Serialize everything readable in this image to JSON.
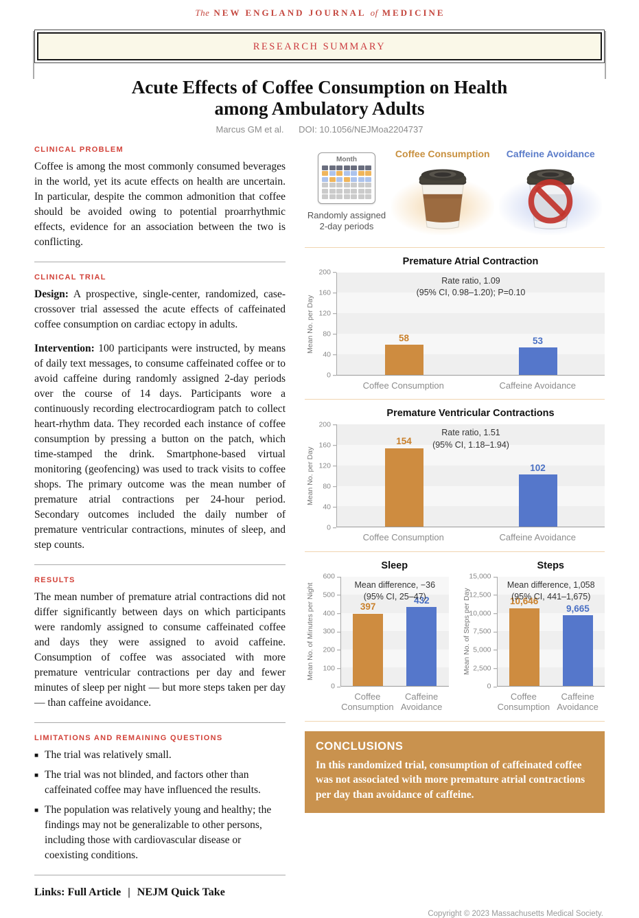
{
  "masthead": {
    "pre": "The",
    "part1": "NEW ENGLAND JOURNAL",
    "mid": "of",
    "part2": "MEDICINE"
  },
  "banner": {
    "label": "RESEARCH SUMMARY"
  },
  "title": {
    "line1": "Acute Effects of Coffee Consumption on Health",
    "line2": "among Ambulatory Adults"
  },
  "byline": {
    "authors": "Marcus GM et al.",
    "doi": "DOI: 10.1056/NEJMoa2204737"
  },
  "sections": {
    "clinical_problem": {
      "heading": "CLINICAL PROBLEM",
      "body": "Coffee is among the most commonly consumed beverages in the world, yet its acute effects on health are uncertain. In particular, despite the common admonition that coffee should be avoided owing to potential proarrhythmic effects, evidence for an association between the two is conflicting."
    },
    "clinical_trial": {
      "heading": "CLINICAL TRIAL",
      "design_label": "Design:",
      "design_body": "A prospective, single-center, randomized, case-crossover trial assessed the acute effects of caffeinated coffee consumption on cardiac ectopy in adults.",
      "intervention_label": "Intervention:",
      "intervention_body": "100 participants were instructed, by means of daily text messages, to consume caffeinated coffee or to avoid caffeine during randomly assigned 2-day periods over the course of 14 days. Participants wore a continuously recording electrocardiogram patch to collect heart-rhythm data. They recorded each instance of coffee consumption by pressing a button on the patch, which time-stamped the drink. Smartphone-based virtual monitoring (geofencing) was used to track visits to coffee shops. The primary outcome was the mean number of premature atrial contractions per 24-hour period. Secondary outcomes included the daily number of premature ventricular contractions, minutes of sleep, and step counts."
    },
    "results": {
      "heading": "RESULTS",
      "body": "The mean number of premature atrial contractions did not differ significantly between days on which participants were randomly assigned to consume caffeinated coffee and days they were assigned to avoid caffeine. Consumption of coffee was associated with more premature ventricular contractions per day and fewer minutes of sleep per night — but more steps taken per day — than caffeine avoidance."
    },
    "limitations": {
      "heading": "LIMITATIONS AND REMAINING QUESTIONS",
      "bullets": [
        "The trial was relatively small.",
        "The trial was not blinded, and factors other than caffeinated coffee may have influenced the results.",
        "The population was relatively young and healthy; the findings may not be generalizable to other persons, including those with cardiovascular disease or coexisting conditions."
      ]
    },
    "links": {
      "label": "Links:",
      "full_article": "Full Article",
      "separator": "|",
      "quick_take": "NEJM Quick Take"
    }
  },
  "illustration": {
    "calendar_month_label": "Month",
    "calendar_caption": "Randomly assigned\n2-day periods",
    "coffee_label": "Coffee Consumption",
    "avoidance_label": "Caffeine Avoidance",
    "calendar_rows": [
      [
        "h",
        "h",
        "h",
        "h",
        "h",
        "h",
        "h"
      ],
      [
        "o",
        "b",
        "o",
        "b",
        "b",
        "o",
        "o"
      ],
      [
        "b",
        "o",
        "b",
        "o",
        "b",
        "b",
        "b"
      ],
      [
        "g",
        "g",
        "g",
        "g",
        "g",
        "g",
        "g"
      ],
      [
        "g",
        "g",
        "g",
        "g",
        "g",
        "g",
        "g"
      ],
      [
        "g",
        "g",
        "g",
        "g",
        "g",
        "g",
        "g"
      ]
    ]
  },
  "chart_data": [
    {
      "type": "bar",
      "title": "Premature Atrial Contraction",
      "annotation": "Rate ratio, 1.09\n(95% CI, 0.98–1.20); P=0.10",
      "ylabel": "Mean No. per Day",
      "ylim": [
        0,
        200
      ],
      "yticks": [
        0,
        40,
        80,
        120,
        160,
        200
      ],
      "ytick_labels": [
        "0",
        "40",
        "80",
        "120",
        "160",
        "200"
      ],
      "categories": [
        "Coffee Consumption",
        "Caffeine Avoidance"
      ],
      "values": [
        58,
        53
      ],
      "value_labels": [
        "58",
        "53"
      ],
      "series_keys": [
        "coffee",
        "avoidance"
      ],
      "grid": "banded",
      "legend": "none"
    },
    {
      "type": "bar",
      "title": "Premature Ventricular Contractions",
      "annotation": "Rate ratio, 1.51\n(95% CI, 1.18–1.94)",
      "ylabel": "Mean No. per Day",
      "ylim": [
        0,
        200
      ],
      "yticks": [
        0,
        40,
        80,
        120,
        160,
        200
      ],
      "ytick_labels": [
        "0",
        "40",
        "80",
        "120",
        "160",
        "200"
      ],
      "categories": [
        "Coffee Consumption",
        "Caffeine Avoidance"
      ],
      "values": [
        154,
        102
      ],
      "value_labels": [
        "154",
        "102"
      ],
      "series_keys": [
        "coffee",
        "avoidance"
      ],
      "grid": "banded",
      "legend": "none"
    },
    {
      "type": "bar",
      "title": "Sleep",
      "annotation": "Mean difference, −36\n(95% CI, 25–47)",
      "ylabel": "Mean No. of Minutes per Night",
      "ylim": [
        0,
        600
      ],
      "yticks": [
        0,
        100,
        200,
        300,
        400,
        500,
        600
      ],
      "ytick_labels": [
        "0",
        "100",
        "200",
        "300",
        "400",
        "500",
        "600"
      ],
      "categories": [
        "Coffee\nConsumption",
        "Caffeine\nAvoidance"
      ],
      "values": [
        397,
        432
      ],
      "value_labels": [
        "397",
        "432"
      ],
      "series_keys": [
        "coffee",
        "avoidance"
      ],
      "grid": "banded",
      "legend": "none"
    },
    {
      "type": "bar",
      "title": "Steps",
      "annotation": "Mean difference, 1,058\n(95% CI, 441–1,675)",
      "ylabel": "Mean No. of Steps per Day",
      "ylim": [
        0,
        15000
      ],
      "yticks": [
        0,
        2500,
        5000,
        7500,
        10000,
        12500,
        15000
      ],
      "ytick_labels": [
        "0",
        "2,500",
        "5,000",
        "7,500",
        "10,000",
        "12,500",
        "15,000"
      ],
      "categories": [
        "Coffee\nConsumption",
        "Caffeine\nAvoidance"
      ],
      "values": [
        10646,
        9665
      ],
      "value_labels": [
        "10,646",
        "9,665"
      ],
      "series_keys": [
        "coffee",
        "avoidance"
      ],
      "grid": "banded",
      "legend": "none"
    }
  ],
  "conclusions": {
    "heading": "CONCLUSIONS",
    "body": "In this randomized trial, consumption of caffeinated coffee was not associated with more premature atrial contractions per day than avoidance of caffeine."
  },
  "footer": {
    "copyright": "Copyright © 2023  Massachusetts Medical Society."
  },
  "colors": {
    "nejm_red": "#C4463E",
    "heading_red": "#D24138",
    "coffee_bar": "#CE8C40",
    "coffee_label": "#C9802B",
    "avoidance_bar": "#5577CB",
    "avoidance_label": "#4A70C4",
    "conclusions_bg": "#C9924E",
    "banner_bg": "#FAF8E8",
    "cal_h": "#6A6E7E",
    "cal_o": "#EFB55C",
    "cal_b": "#ADC3EC",
    "cal_g": "#CBCBCB",
    "band_dark": "#EFEFEF",
    "band_light": "#F7F7F7"
  }
}
